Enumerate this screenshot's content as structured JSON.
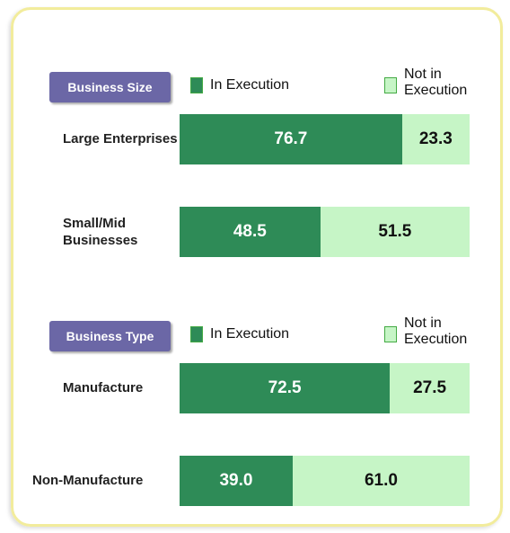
{
  "chart_data": [
    {
      "type": "bar",
      "title": "Business Size",
      "categories": [
        "Large Enterprises",
        "Small/Mid Businesses"
      ],
      "series": [
        {
          "name": "In Execution",
          "color": "#2e8b57",
          "values": [
            76.7,
            48.5
          ],
          "value_labels": [
            "76.7",
            "48.5"
          ]
        },
        {
          "name": "Not in Execution",
          "color": "#c6f5c6",
          "values": [
            23.3,
            51.5
          ],
          "value_labels": [
            "23.3",
            "51.5"
          ]
        }
      ]
    },
    {
      "type": "bar",
      "title": "Business Type",
      "categories": [
        "Manufacture",
        "Non-Manufacture"
      ],
      "series": [
        {
          "name": "In Execution",
          "color": "#2e8b57",
          "values": [
            72.5,
            39.0
          ],
          "value_labels": [
            "72.5",
            "39.0"
          ]
        },
        {
          "name": "Not in Execution",
          "color": "#c6f5c6",
          "values": [
            27.5,
            61.0
          ],
          "value_labels": [
            "27.5",
            "61.0"
          ]
        }
      ]
    }
  ]
}
